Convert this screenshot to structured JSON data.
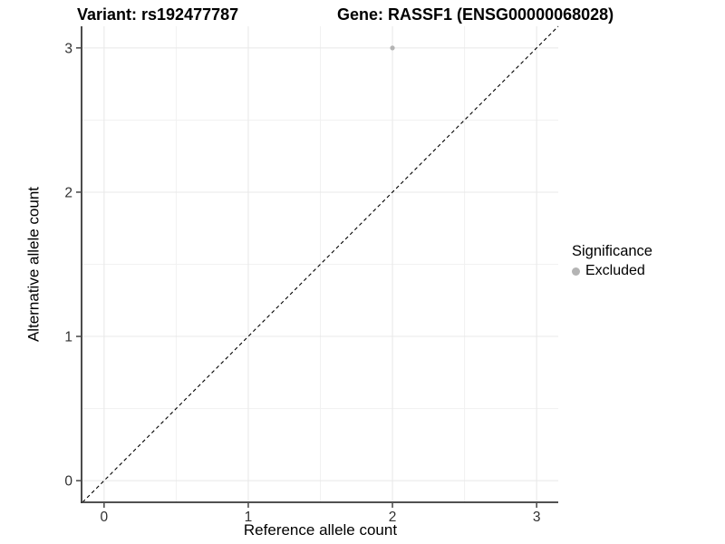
{
  "titles": {
    "variant": "Variant: rs192477787",
    "gene": "Gene: RASSF1 (ENSG00000068028)"
  },
  "chart_data": {
    "type": "scatter",
    "title_left": "Variant: rs192477787",
    "title_right": "Gene: RASSF1 (ENSG00000068028)",
    "xlabel": "Reference allele count",
    "ylabel": "Alternative allele count",
    "xlim": [
      -0.15,
      3.15
    ],
    "ylim": [
      -0.15,
      3.15
    ],
    "xticks": [
      0,
      1,
      2,
      3
    ],
    "yticks": [
      0,
      1,
      2,
      3
    ],
    "minor_ticks": [
      0.5,
      1.5,
      2.5
    ],
    "grid": true,
    "points": [
      {
        "x": 2,
        "y": 3,
        "series": "Excluded"
      }
    ],
    "identity_line": {
      "slope": 1,
      "intercept": 0,
      "style": "dashed"
    },
    "legend": {
      "title": "Significance",
      "position": "right",
      "items": [
        {
          "label": "Excluded",
          "color": "#b4b4b4"
        }
      ]
    }
  },
  "colors": {
    "point": "#b4b4b4",
    "grid_major": "#e8e8e8",
    "grid_minor": "#f1f1f1",
    "axis_line": "#383838",
    "tick_label": "#303030",
    "identity_line": "#000000",
    "background": "#ffffff"
  }
}
